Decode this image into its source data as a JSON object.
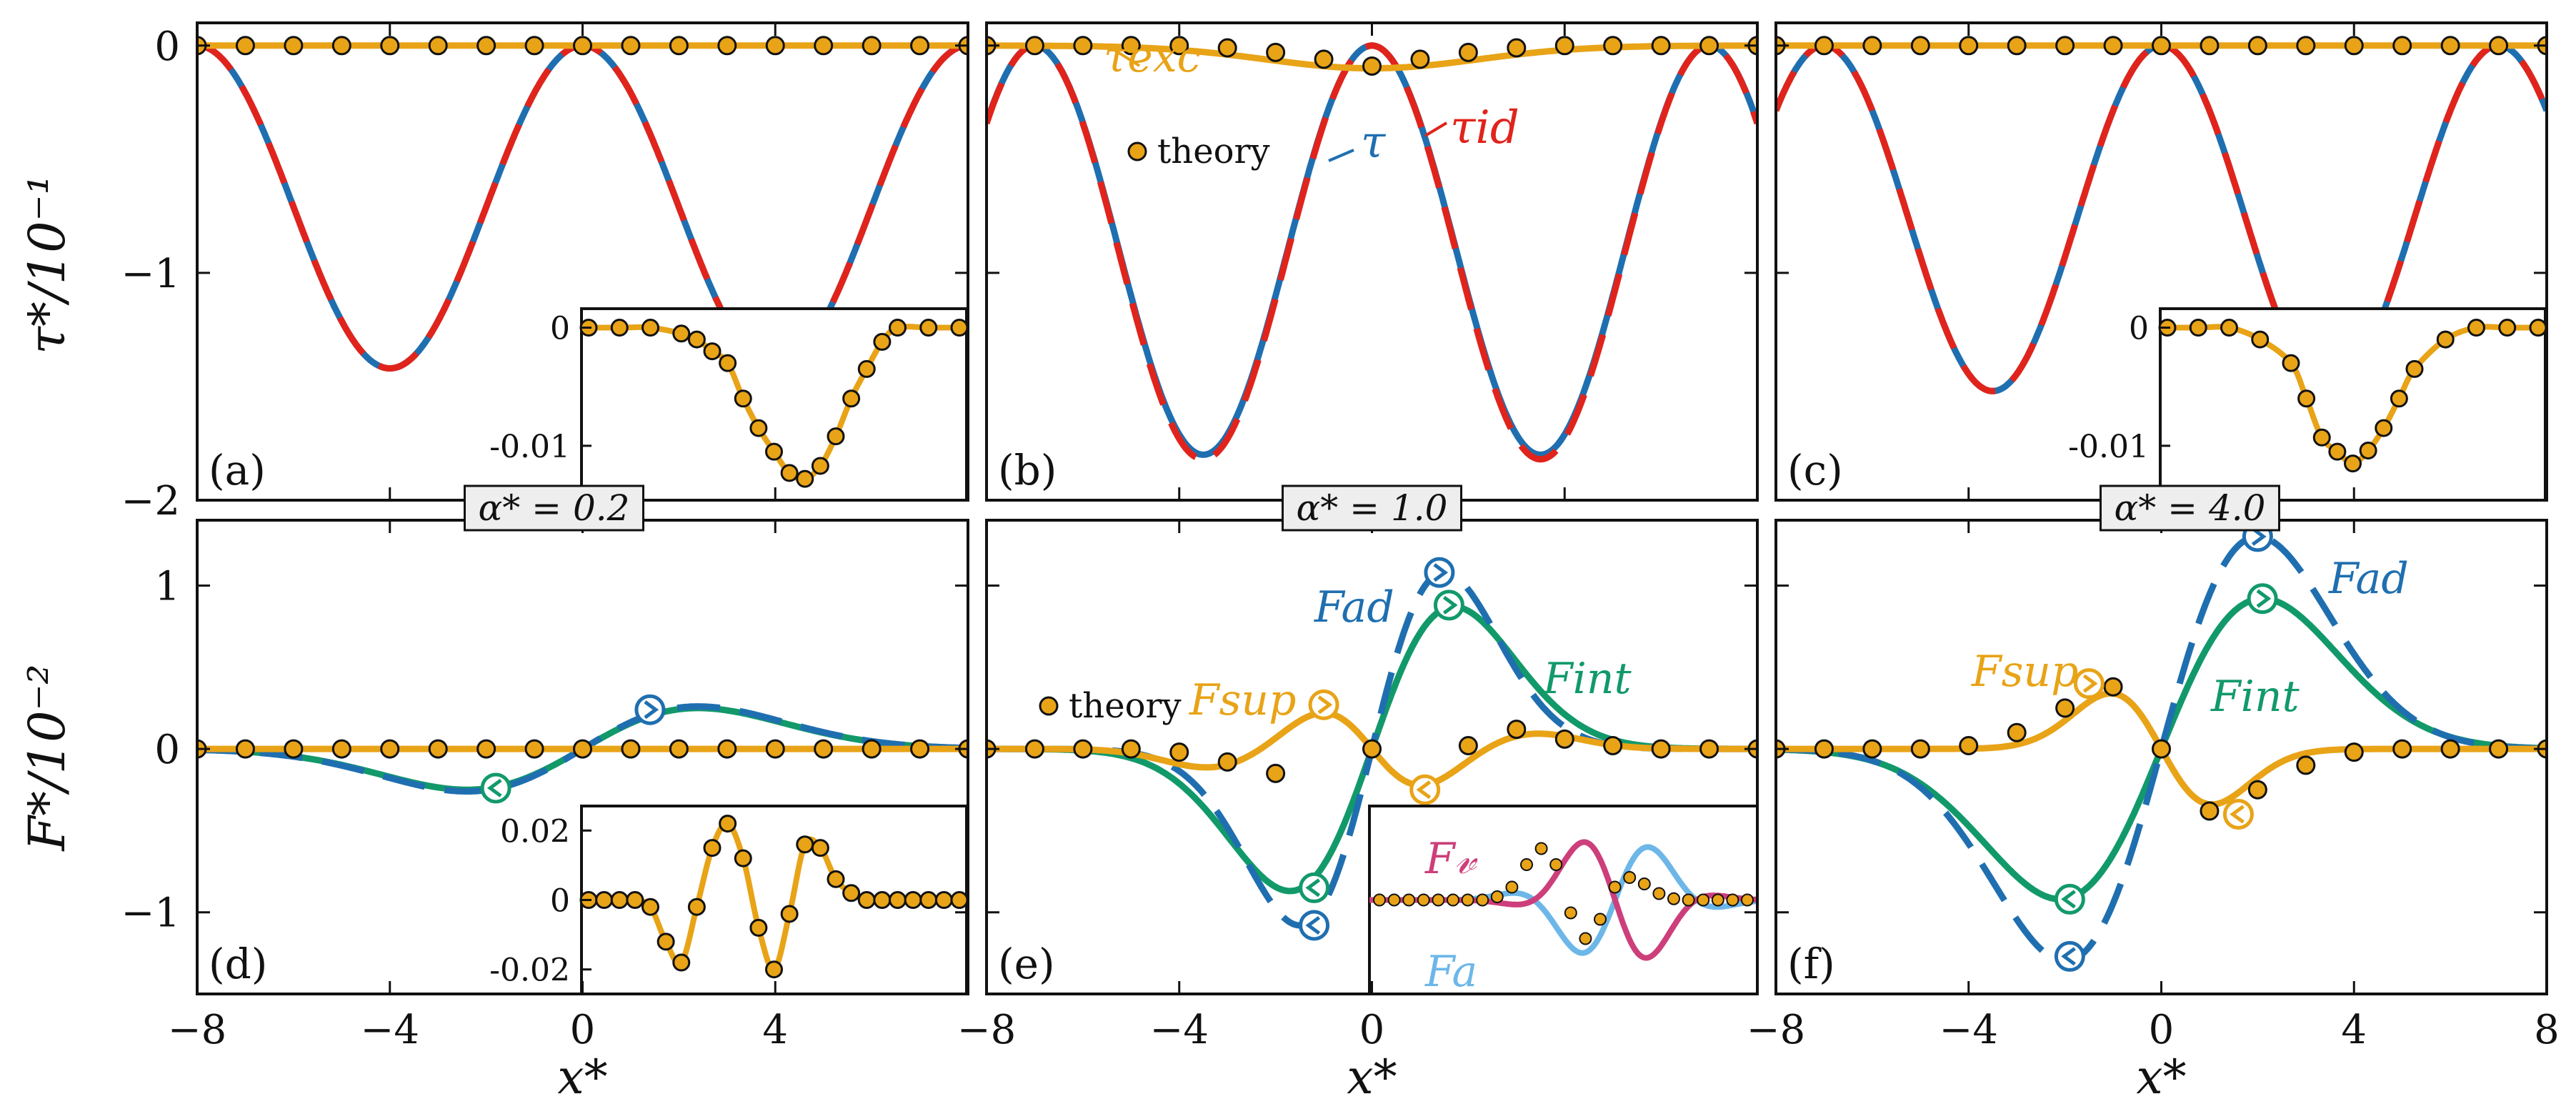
{
  "figure": {
    "row1_ylabel": "τ*/10⁻¹",
    "row2_ylabel": "F*/10⁻²",
    "xlabel": "x*"
  },
  "colors": {
    "blue": "#1f6fb0",
    "red": "#e0241c",
    "orange": "#e8a317",
    "green": "#12996a",
    "magenta": "#cc3f7a",
    "lightblue": "#6db7e8",
    "frame": "#111111"
  },
  "chart_data": [
    {
      "panel": "(a)",
      "type": "line",
      "alpha": "α* = 0.2",
      "xlim": [
        -8,
        8
      ],
      "ylim": [
        -2,
        0.1
      ],
      "xticks": [
        "−8",
        "−4",
        "0",
        "4"
      ],
      "xtick_values": [
        -8,
        -4,
        0,
        4
      ],
      "yticks": [
        "0",
        "−1",
        "−2"
      ],
      "ytick_values": [
        0,
        -1,
        -2
      ],
      "series": [
        {
          "name": "τ",
          "color": "blue",
          "style": "solid",
          "kind": "tau",
          "amp": 1.42,
          "center": 0,
          "period": 8
        },
        {
          "name": "τ_id",
          "color": "red",
          "style": "dashed",
          "kind": "tau",
          "amp": 1.42,
          "center": 0,
          "period": 8
        },
        {
          "name": "τ_exc",
          "color": "orange",
          "style": "solid",
          "kind": "flat",
          "value": 0
        }
      ],
      "theory_x": [
        -8,
        -7,
        -6,
        -5,
        -4,
        -3,
        -2,
        -1,
        0,
        1,
        2,
        3,
        4,
        5,
        6,
        7,
        8
      ],
      "theory_y": [
        0,
        0,
        0,
        0,
        0,
        0,
        0,
        0,
        0,
        0,
        0,
        0,
        0,
        0,
        0,
        0,
        0
      ],
      "inset": {
        "ylim": [
          -0.014,
          0.001
        ],
        "yticks": [
          "0",
          "-0.01"
        ],
        "ytick_values": [
          0,
          -0.01
        ],
        "x": [
          -6,
          -5,
          -4,
          -3,
          -2.5,
          -2,
          -1.5,
          -1,
          -0.5,
          0,
          0.5,
          1,
          1.5,
          2,
          2.5,
          3,
          3.5,
          4,
          5,
          6
        ],
        "y": [
          0,
          0,
          0,
          -0.0005,
          -0.001,
          -0.002,
          -0.003,
          -0.006,
          -0.0085,
          -0.0105,
          -0.0123,
          -0.0128,
          -0.0117,
          -0.0092,
          -0.006,
          -0.0035,
          -0.0012,
          0,
          0,
          0
        ]
      }
    },
    {
      "panel": "(b)",
      "type": "line",
      "alpha": "α* = 1.0",
      "xlim": [
        -8,
        8
      ],
      "ylim": [
        -2,
        0.1
      ],
      "xticks": [
        "−8",
        "−4",
        "0",
        "4"
      ],
      "xtick_values": [
        -8,
        -4,
        0,
        4
      ],
      "series": [
        {
          "name": "τ",
          "color": "blue",
          "style": "solid",
          "kind": "tau",
          "amp": 1.8,
          "center": 0,
          "period": 7
        },
        {
          "name": "τ_id",
          "color": "red",
          "style": "dashed",
          "kind": "tau",
          "amp": 1.82,
          "center": 0,
          "period": 7
        },
        {
          "name": "τ_exc",
          "color": "orange",
          "style": "solid",
          "kind": "dip",
          "amp": 0.1
        }
      ],
      "theory_x": [
        -8,
        -7,
        -6,
        -5,
        -4,
        -3,
        -2,
        -1,
        0,
        1,
        2,
        3,
        4,
        5,
        6,
        7,
        8
      ],
      "theory_y": [
        0,
        0,
        0,
        0,
        0,
        -0.01,
        -0.03,
        -0.06,
        -0.09,
        -0.06,
        -0.03,
        -0.01,
        0,
        0,
        0,
        0,
        0
      ],
      "labels": {
        "tau_exc": "τexc",
        "tau_id": "τid",
        "tau": "τ",
        "theory": "theory"
      }
    },
    {
      "panel": "(c)",
      "type": "line",
      "alpha": "α* = 4.0",
      "xlim": [
        -8,
        8
      ],
      "ylim": [
        -2,
        0.1
      ],
      "xticks": [
        "−8",
        "−4",
        "0",
        "4",
        "8"
      ],
      "xtick_values": [
        -8,
        -4,
        0,
        4,
        8
      ],
      "series": [
        {
          "name": "τ",
          "color": "blue",
          "style": "solid",
          "kind": "tau",
          "amp": 1.52,
          "center": 0,
          "period": 7
        },
        {
          "name": "τ_id",
          "color": "red",
          "style": "dashed",
          "kind": "tau",
          "amp": 1.52,
          "center": 0,
          "period": 7
        },
        {
          "name": "τ_exc",
          "color": "orange",
          "style": "solid",
          "kind": "flat",
          "value": 0
        }
      ],
      "theory_x": [
        -8,
        -7,
        -6,
        -5,
        -4,
        -3,
        -2,
        -1,
        0,
        1,
        2,
        3,
        4,
        5,
        6,
        7,
        8
      ],
      "theory_y": [
        0,
        0,
        0,
        0,
        0,
        0,
        0,
        0,
        0,
        0,
        0,
        0,
        0,
        0,
        0,
        0,
        0
      ],
      "inset": {
        "ylim": [
          -0.014,
          0.001
        ],
        "yticks": [
          "0",
          "-0.01"
        ],
        "ytick_values": [
          0,
          -0.01
        ],
        "x": [
          -6,
          -5,
          -4,
          -3,
          -2,
          -1.5,
          -1,
          -0.5,
          0,
          0.5,
          1,
          1.5,
          2,
          3,
          4,
          5,
          6
        ],
        "y": [
          0,
          0,
          0,
          -0.001,
          -0.003,
          -0.006,
          -0.0093,
          -0.0105,
          -0.0115,
          -0.0104,
          -0.0085,
          -0.006,
          -0.0035,
          -0.001,
          0,
          0,
          0
        ]
      }
    },
    {
      "panel": "(d)",
      "type": "line",
      "xlim": [
        -8,
        8
      ],
      "ylim": [
        -1.5,
        1.4
      ],
      "xticks": [
        "−8",
        "−4",
        "0",
        "4"
      ],
      "xtick_values": [
        -8,
        -4,
        0,
        4
      ],
      "yticks": [
        "1",
        "0",
        "−1"
      ],
      "ytick_values": [
        1,
        0,
        -1
      ],
      "series": [
        {
          "name": "F_ad",
          "color": "blue",
          "style": "dashed",
          "kind": "force",
          "amp": 0.26,
          "width": 2.4
        },
        {
          "name": "F_int",
          "color": "green",
          "style": "solid",
          "kind": "force",
          "amp": 0.25,
          "width": 2.4
        },
        {
          "name": "F_sup",
          "color": "orange",
          "style": "solid",
          "kind": "flat",
          "value": 0
        }
      ],
      "markers": [
        {
          "x": 1.4,
          "y": 0.24,
          "color": "blue",
          "dir": "right"
        },
        {
          "x": -1.8,
          "y": -0.24,
          "color": "green",
          "dir": "left"
        }
      ],
      "theory_x": [
        -8,
        -7,
        -6,
        -5,
        -4,
        -3,
        -2,
        -1,
        0,
        1,
        2,
        3,
        4,
        5,
        6,
        7,
        8
      ],
      "theory_y": [
        0,
        0,
        0,
        0,
        0,
        0,
        0,
        0,
        0,
        0,
        0,
        0,
        0,
        0,
        0,
        0,
        0
      ],
      "inset": {
        "ylim": [
          -0.025,
          0.025
        ],
        "yticks": [
          "0.02",
          "0",
          "-0.02"
        ],
        "ytick_values": [
          0.02,
          0,
          -0.02
        ],
        "x": [
          -6,
          -5.5,
          -5,
          -4.5,
          -4,
          -3.5,
          -3,
          -2.5,
          -2,
          -1.5,
          -1,
          -0.5,
          0,
          0.5,
          1,
          1.5,
          2,
          2.5,
          3,
          3.5,
          4,
          4.5,
          5,
          5.5,
          6
        ],
        "y": [
          0,
          0,
          0,
          0,
          -0.002,
          -0.012,
          -0.018,
          -0.002,
          0.015,
          0.022,
          0.012,
          -0.008,
          -0.02,
          -0.004,
          0.016,
          0.015,
          0.006,
          0.002,
          0,
          0,
          0,
          0,
          0,
          0,
          0
        ]
      }
    },
    {
      "panel": "(e)",
      "type": "line",
      "xlim": [
        -8,
        8
      ],
      "ylim": [
        -1.5,
        1.4
      ],
      "xticks": [
        "−8",
        "−4",
        "0"
      ],
      "xtick_values": [
        -8,
        -4,
        0
      ],
      "series": [
        {
          "name": "F_ad",
          "color": "blue",
          "style": "dashed",
          "kind": "force",
          "amp": 1.08,
          "width": 1.5
        },
        {
          "name": "F_int",
          "color": "green",
          "style": "solid",
          "kind": "force",
          "amp": 0.87,
          "width": 1.7
        },
        {
          "name": "F_sup",
          "color": "orange",
          "style": "solid",
          "kind": "sup",
          "amp": 0.27
        }
      ],
      "markers": [
        {
          "x": 1.4,
          "y": 1.08,
          "color": "blue",
          "dir": "right"
        },
        {
          "x": 1.6,
          "y": 0.88,
          "color": "green",
          "dir": "right"
        },
        {
          "x": -1.0,
          "y": 0.27,
          "color": "orange",
          "dir": "right"
        },
        {
          "x": 1.1,
          "y": -0.25,
          "color": "orange",
          "dir": "left"
        },
        {
          "x": -1.2,
          "y": -0.85,
          "color": "green",
          "dir": "left"
        },
        {
          "x": -1.2,
          "y": -1.08,
          "color": "blue",
          "dir": "left"
        }
      ],
      "theory_x": [
        -8,
        -7,
        -6,
        -5,
        -4,
        -3,
        -2,
        -1,
        0,
        1,
        2,
        3,
        4,
        5,
        6,
        7,
        8
      ],
      "theory_y": [
        0,
        0,
        0,
        0,
        -0.02,
        -0.08,
        -0.15,
        0.27,
        0,
        -0.25,
        0.02,
        0.12,
        0.06,
        0.02,
        0,
        0,
        0
      ],
      "labels": {
        "F_ad": "Fad",
        "F_int": "Fint",
        "F_sup": "Fsup",
        "theory": "theory"
      },
      "inset": {
        "labels": {
          "F_v": "F𝓋",
          "F_a": "Fa"
        },
        "dots_y": [
          0,
          0,
          0,
          0,
          0,
          0,
          0,
          0,
          0.05,
          0.2,
          0.55,
          0.8,
          0.55,
          -0.2,
          -0.6,
          -0.3,
          0.2,
          0.35,
          0.25,
          0.1,
          0.02,
          0,
          0,
          0,
          0,
          0
        ]
      }
    },
    {
      "panel": "(f)",
      "type": "line",
      "xlim": [
        -8,
        8
      ],
      "ylim": [
        -1.5,
        1.4
      ],
      "xticks": [
        "−8",
        "−4",
        "0",
        "4",
        "8"
      ],
      "xtick_values": [
        -8,
        -4,
        0,
        4,
        8
      ],
      "series": [
        {
          "name": "F_ad",
          "color": "blue",
          "style": "dashed",
          "kind": "force",
          "amp": 1.3,
          "width": 2.0
        },
        {
          "name": "F_int",
          "color": "green",
          "style": "solid",
          "kind": "force",
          "amp": 0.92,
          "width": 2.1
        },
        {
          "name": "F_sup",
          "color": "orange",
          "style": "solid",
          "kind": "sup",
          "amp": 0.4
        }
      ],
      "markers": [
        {
          "x": 2.0,
          "y": 1.3,
          "color": "blue",
          "dir": "right"
        },
        {
          "x": 2.1,
          "y": 0.92,
          "color": "green",
          "dir": "right"
        },
        {
          "x": -1.5,
          "y": 0.4,
          "color": "orange",
          "dir": "right"
        },
        {
          "x": 1.6,
          "y": -0.4,
          "color": "orange",
          "dir": "left"
        },
        {
          "x": -1.9,
          "y": -0.92,
          "color": "green",
          "dir": "left"
        },
        {
          "x": -1.9,
          "y": -1.27,
          "color": "blue",
          "dir": "left"
        }
      ],
      "theory_x": [
        -8,
        -7,
        -6,
        -5,
        -4,
        -3,
        -2,
        -1,
        0,
        1,
        2,
        3,
        4,
        5,
        6,
        7,
        8
      ],
      "theory_y": [
        0,
        0,
        0,
        0,
        0.02,
        0.1,
        0.25,
        0.38,
        0,
        -0.38,
        -0.25,
        -0.1,
        -0.02,
        0,
        0,
        0,
        0
      ],
      "labels": {
        "F_ad": "Fad",
        "F_int": "Fint",
        "F_sup": "Fsup"
      }
    }
  ]
}
